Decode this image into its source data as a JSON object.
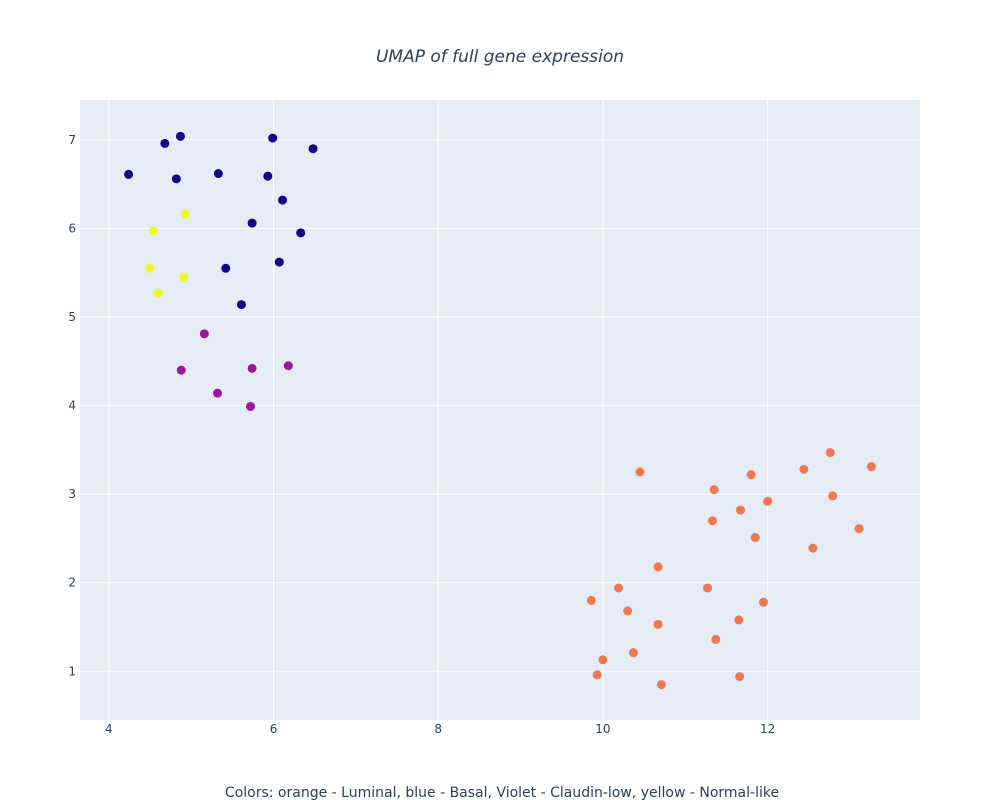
{
  "chart_data": {
    "type": "scatter",
    "title": "UMAP of full gene expression",
    "caption": "Colors: orange - Luminal, blue - Basal, Violet - Claudin-low, yellow - Normal-like",
    "xlim": [
      3.65,
      13.85
    ],
    "ylim": [
      0.45,
      7.45
    ],
    "x_ticks": [
      4,
      6,
      8,
      10,
      12
    ],
    "y_ticks": [
      1,
      2,
      3,
      4,
      5,
      6,
      7
    ],
    "grid": true,
    "series": [
      {
        "color": "#0d0887",
        "points": [
          [
            4.24,
            6.61
          ],
          [
            4.68,
            6.96
          ],
          [
            4.87,
            7.04
          ],
          [
            4.82,
            6.56
          ],
          [
            5.33,
            6.62
          ],
          [
            5.99,
            7.02
          ],
          [
            6.48,
            6.9
          ],
          [
            5.93,
            6.59
          ],
          [
            6.11,
            6.32
          ],
          [
            5.74,
            6.06
          ],
          [
            6.33,
            5.95
          ],
          [
            5.42,
            5.55
          ],
          [
            6.07,
            5.62
          ],
          [
            5.61,
            5.14
          ]
        ]
      },
      {
        "color": "#f0f921",
        "points": [
          [
            4.93,
            6.16
          ],
          [
            4.54,
            5.97
          ],
          [
            4.5,
            5.55
          ],
          [
            4.91,
            5.45
          ],
          [
            4.6,
            5.27
          ]
        ]
      },
      {
        "color": "#9c179e",
        "points": [
          [
            5.16,
            4.81
          ],
          [
            4.88,
            4.4
          ],
          [
            5.74,
            4.42
          ],
          [
            6.18,
            4.45
          ],
          [
            5.32,
            4.14
          ],
          [
            5.72,
            3.99
          ]
        ]
      },
      {
        "color": "#ed7953",
        "points": [
          [
            10.45,
            3.25
          ],
          [
            11.35,
            3.05
          ],
          [
            11.8,
            3.22
          ],
          [
            12.44,
            3.28
          ],
          [
            12.76,
            3.47
          ],
          [
            13.26,
            3.31
          ],
          [
            12.0,
            2.92
          ],
          [
            12.79,
            2.98
          ],
          [
            11.67,
            2.82
          ],
          [
            11.33,
            2.7
          ],
          [
            11.85,
            2.51
          ],
          [
            13.11,
            2.61
          ],
          [
            12.55,
            2.39
          ],
          [
            10.67,
            2.18
          ],
          [
            10.19,
            1.94
          ],
          [
            11.27,
            1.94
          ],
          [
            9.86,
            1.8
          ],
          [
            11.95,
            1.78
          ],
          [
            10.3,
            1.68
          ],
          [
            10.67,
            1.53
          ],
          [
            11.65,
            1.58
          ],
          [
            11.37,
            1.36
          ],
          [
            10.37,
            1.21
          ],
          [
            10.0,
            1.13
          ],
          [
            9.93,
            0.96
          ],
          [
            11.66,
            0.94
          ],
          [
            10.71,
            0.85
          ]
        ]
      }
    ]
  }
}
